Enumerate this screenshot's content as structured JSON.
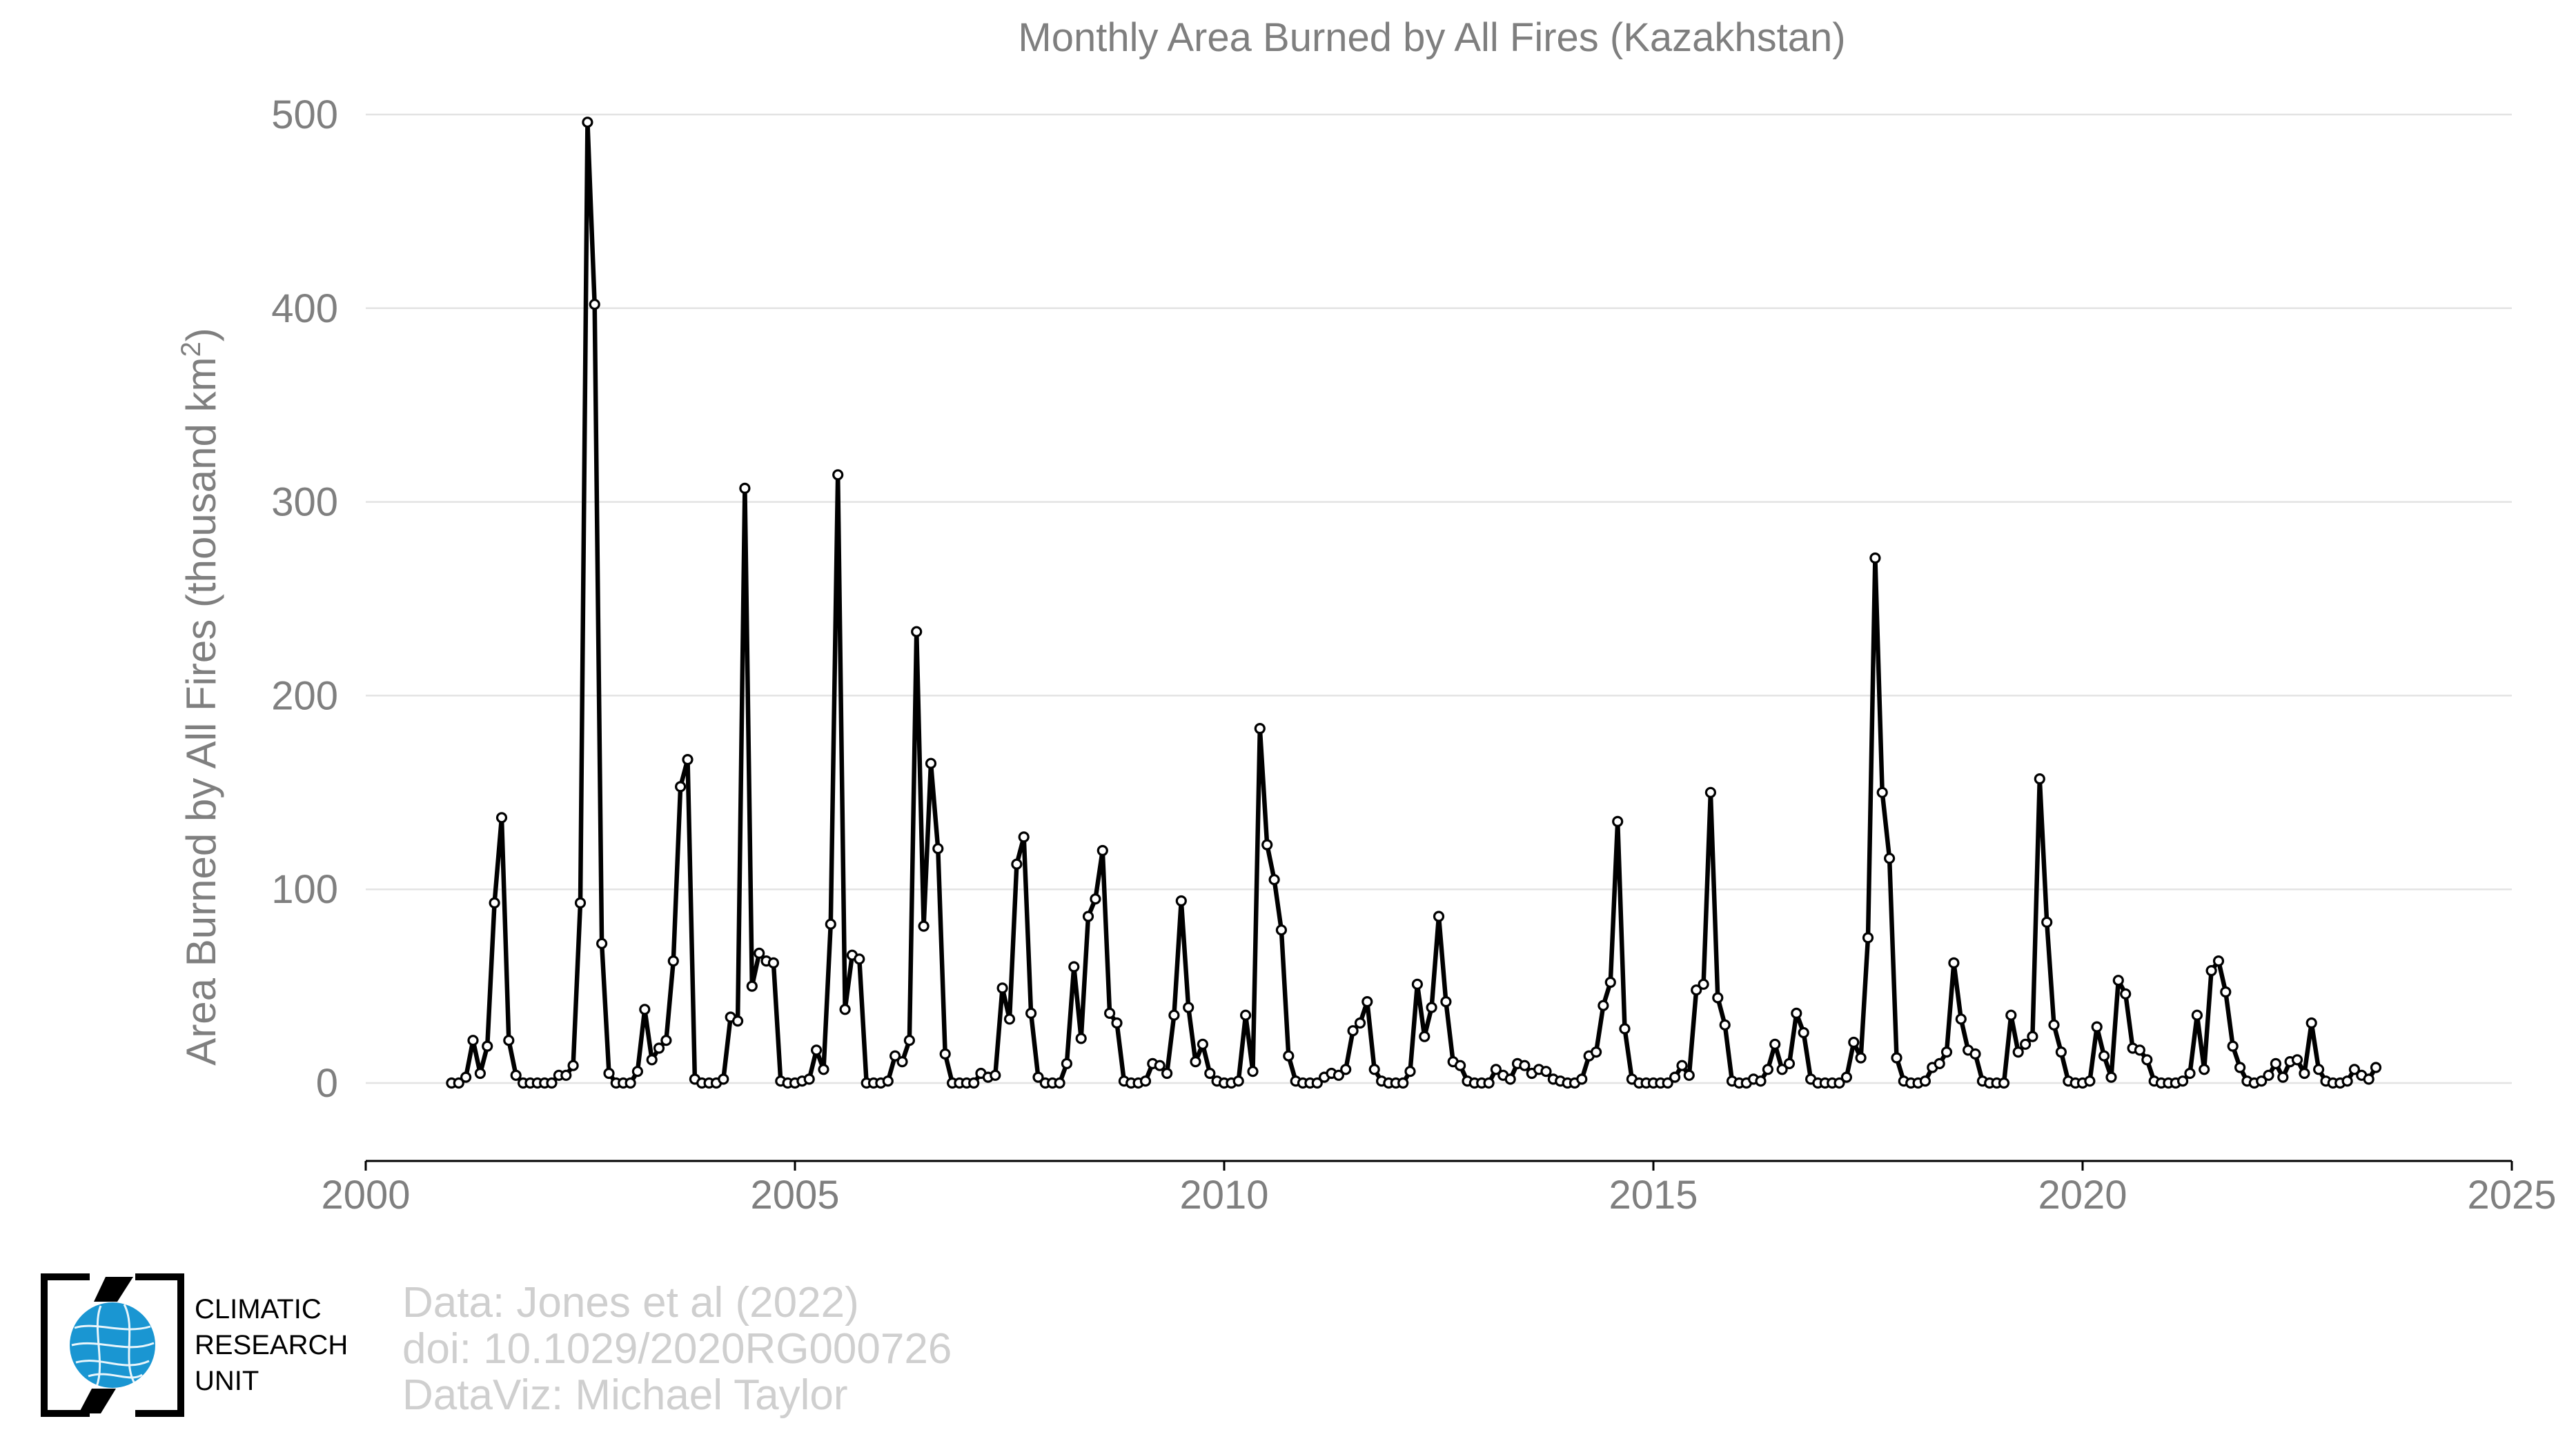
{
  "chart_data": {
    "type": "line",
    "title": "Monthly Area Burned by All Fires (Kazakhstan)",
    "ylabel": "Area Burned by All Fires (thousand km²)",
    "xlabel": "",
    "xlim": [
      2000,
      2025
    ],
    "ylim": [
      -40,
      510
    ],
    "xticks": [
      2000,
      2005,
      2010,
      2015,
      2020,
      2025
    ],
    "yticks": [
      0,
      100,
      200,
      300,
      400,
      500
    ],
    "grid": "horizontal",
    "line_color": "#000000",
    "marker_fill": "#ffffff",
    "x_start": "2001-01",
    "x_step": "month",
    "values": [
      0,
      0,
      3,
      22,
      5,
      19,
      93,
      137,
      22,
      4,
      0,
      0,
      0,
      0,
      0,
      4,
      4,
      9,
      93,
      496,
      402,
      72,
      5,
      0,
      0,
      0,
      6,
      38,
      12,
      18,
      22,
      63,
      153,
      167,
      2,
      0,
      0,
      0,
      2,
      34,
      32,
      307,
      50,
      67,
      63,
      62,
      1,
      0,
      0,
      1,
      2,
      17,
      7,
      82,
      314,
      38,
      66,
      64,
      0,
      0,
      0,
      1,
      14,
      11,
      22,
      233,
      81,
      165,
      121,
      15,
      0,
      0,
      0,
      0,
      5,
      3,
      4,
      49,
      33,
      113,
      127,
      36,
      3,
      0,
      0,
      0,
      10,
      60,
      23,
      86,
      95,
      120,
      36,
      31,
      1,
      0,
      0,
      1,
      10,
      9,
      5,
      35,
      94,
      39,
      11,
      20,
      5,
      1,
      0,
      0,
      1,
      35,
      6,
      183,
      123,
      105,
      79,
      14,
      1,
      0,
      0,
      0,
      3,
      5,
      4,
      7,
      27,
      31,
      42,
      7,
      1,
      0,
      0,
      0,
      6,
      51,
      24,
      39,
      86,
      42,
      11,
      9,
      1,
      0,
      0,
      0,
      7,
      4,
      2,
      10,
      9,
      5,
      7,
      6,
      2,
      1,
      0,
      0,
      2,
      14,
      16,
      40,
      52,
      135,
      28,
      2,
      0,
      0,
      0,
      0,
      0,
      3,
      9,
      4,
      48,
      51,
      150,
      44,
      30,
      1,
      0,
      0,
      2,
      1,
      7,
      20,
      7,
      10,
      36,
      26,
      2,
      0,
      0,
      0,
      0,
      3,
      21,
      13,
      75,
      271,
      150,
      116,
      13,
      1,
      0,
      0,
      1,
      8,
      10,
      16,
      62,
      33,
      17,
      15,
      1,
      0,
      0,
      0,
      35,
      16,
      20,
      24,
      157,
      83,
      30,
      16,
      1,
      0,
      0,
      1,
      29,
      14,
      3,
      53,
      46,
      18,
      17,
      12,
      1,
      0,
      0,
      0,
      1,
      5,
      35,
      7,
      58,
      63,
      47,
      19,
      8,
      1,
      0,
      1,
      4,
      10,
      3,
      11,
      12,
      5,
      31,
      7,
      1,
      0,
      0,
      1,
      7,
      4,
      2,
      8
    ]
  },
  "credits": {
    "line1": "Data: Jones et al (2022)",
    "line2": "doi: 10.1029/2020RG000726",
    "line3": "DataViz: Michael Taylor"
  },
  "logo": {
    "icon": "climatic-research-unit-globe-logo",
    "lines": [
      "CLIMATIC",
      "RESEARCH",
      "UNIT"
    ],
    "globe_color": "#1a96d2"
  }
}
